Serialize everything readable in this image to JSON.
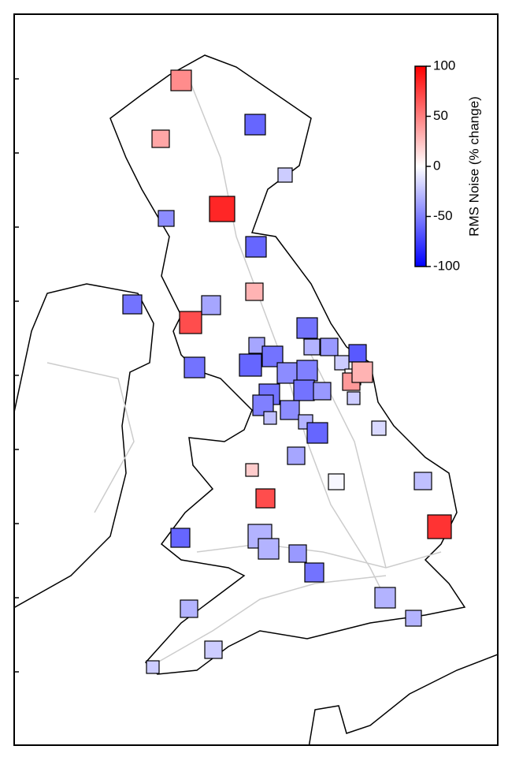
{
  "chart_data": {
    "type": "map",
    "colorbar_label": "RMS Noise (% change)",
    "clim": [
      -100,
      100
    ],
    "cticks": [
      100,
      50,
      0,
      -50,
      -100
    ],
    "values": [
      45,
      35,
      -60,
      -20,
      85,
      -45,
      -60,
      30,
      -55,
      -35,
      70,
      -55,
      -35,
      -30,
      -40,
      -65,
      -55,
      -55,
      -60,
      -20,
      -45,
      -50,
      5,
      40,
      30,
      -55,
      -55,
      -40,
      -50,
      -20,
      -45,
      -30,
      -25,
      -60,
      -15,
      -35,
      20,
      -3,
      -25,
      70,
      80,
      -30,
      -60,
      -30,
      -40,
      -55,
      -30,
      -30,
      -30,
      -20,
      -20
    ]
  }
}
